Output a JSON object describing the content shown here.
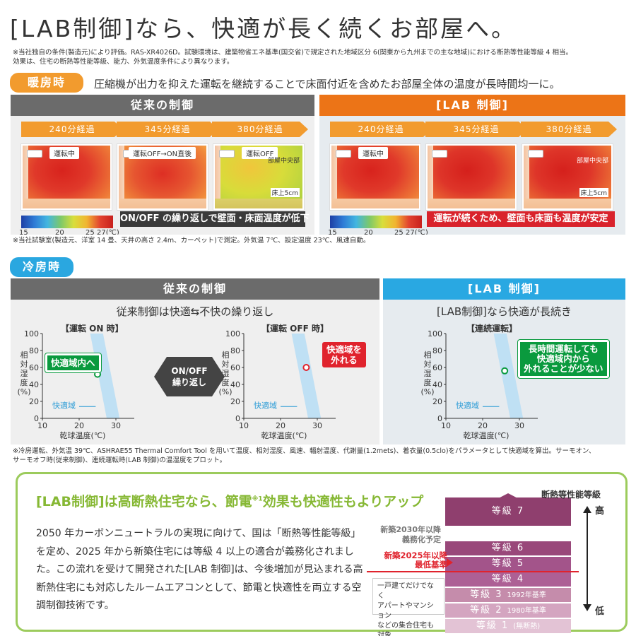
{
  "heading": "[LAB制御]なら、快適が長く続くお部屋へ。",
  "top_note_line1": "※当社独自の条件(製造元)により評価。RAS-XR4026D。試験環境は、建築物省エネ基準(国交省)で規定された地域区分 6(関東から九州までの主な地域)における断熱等性能等級 4 相当。",
  "top_note_line2": "効果は、住宅の断熱等性能等級、能力、外気温度条件により異なります。",
  "heating": {
    "badge": "暖房時",
    "lead": "圧縮機が出力を抑えた運転を継続することで床面付近を含めたお部屋全体の温度が長時間均一に。",
    "conventional": {
      "header": "従来の制御",
      "times": [
        "240分経過",
        "345分経過",
        "380分経過"
      ],
      "states": [
        "運転中",
        "運転OFF→ON直後",
        "運転OFF"
      ],
      "label_center": "部屋中央部",
      "label_floor": "床上5cm",
      "banner": "ON/OFF の繰り返しで壁面・床面温度が低下"
    },
    "lab": {
      "header": "[LAB 制御]",
      "times": [
        "240分経過",
        "345分経過",
        "380分経過"
      ],
      "states": [
        "運転中"
      ],
      "label_center": "部屋中央部",
      "label_floor": "床上5cm",
      "banner": "運転が続くため、壁面も床面も温度が安定"
    },
    "scale_ticks": [
      "15",
      "20",
      "25",
      "27(℃)"
    ],
    "note": "※当社試験室(製造元、洋室 14 畳、天井の高さ 2.4m、カーペット)で測定。外気温 7℃、設定温度 23℃、風速自動。"
  },
  "cooling": {
    "badge": "冷房時",
    "conventional": {
      "header": "従来の制御",
      "subtitle": "従来制御は快適⇆不快の繰り返し",
      "chart_on_title": "【運転 ON 時】",
      "chart_off_title": "【運転 OFF 時】",
      "label_in": "快適域内へ",
      "label_out": "快適域を\n外れる",
      "cycle": "ON/OFF\n繰り返し"
    },
    "lab": {
      "header": "[LAB 制御]",
      "subtitle": "[LAB制御]なら快適が長続き",
      "chart_title": "【連続運転】",
      "label": "長時間運転しても\n快適域内から\n外れることが少ない"
    },
    "zone_label": "快適域",
    "y_axis_label": "相対湿度(%)",
    "x_axis_label": "乾球温度(℃)",
    "note_line1": "※冷房運転、外気温 39℃、ASHRAE55 Thermal Comfort Tool を用いて温度、相対湿度、風速、輻射温度、代謝量(1.2mets)、着衣量(0.5clo)をパラメータとして快適域を算出。サーモオン、",
    "note_line2": "サーモオフ時(従来制御)、連続運転時(LAB 制御)の温湿度をプロット。"
  },
  "chart_data": [
    {
      "type": "scatter",
      "title": "【運転 ON 時】",
      "xlabel": "乾球温度(℃)",
      "ylabel": "相対湿度(%)",
      "xlim": [
        10,
        35
      ],
      "ylim": [
        0,
        100
      ],
      "xticks": [
        10,
        20,
        30
      ],
      "yticks": [
        0,
        20,
        40,
        60,
        80,
        100
      ],
      "points": [
        {
          "x": 25,
          "y": 52,
          "label": "快適域内へ"
        }
      ]
    },
    {
      "type": "scatter",
      "title": "【運転 OFF 時】",
      "xlabel": "乾球温度(℃)",
      "ylabel": "相対湿度(%)",
      "xlim": [
        10,
        35
      ],
      "ylim": [
        0,
        100
      ],
      "xticks": [
        10,
        20,
        30
      ],
      "yticks": [
        0,
        20,
        40,
        60,
        80,
        100
      ],
      "points": [
        {
          "x": 27,
          "y": 60,
          "label": "快適域を外れる"
        }
      ]
    },
    {
      "type": "scatter",
      "title": "【連続運転】",
      "xlabel": "乾球温度(℃)",
      "ylabel": "相対湿度(%)",
      "xlim": [
        10,
        35
      ],
      "ylim": [
        0,
        100
      ],
      "xticks": [
        10,
        20,
        30
      ],
      "yticks": [
        0,
        20,
        40,
        60,
        80,
        100
      ],
      "points": [
        {
          "x": 26,
          "y": 56,
          "label": "長時間運転しても快適域内から外れることが少ない"
        }
      ]
    }
  ],
  "insulation": {
    "title_a": "[LAB制御]は高断熱住宅なら、節電",
    "title_sup": "※1",
    "title_b": "効果も快適性もよりアップ",
    "body": "2050 年カーボンニュートラルの実現に向けて、国は「断熱等性能等級」を定め、2025 年から新築住宅には等級 4 以上の適合が義務化されました。この流れを受けて開発された[LAB 制御]は、今後増加が見込まれる高断熱住宅にも対応したルームエアコンとして、節電と快適性を両立する空調制御技術です。",
    "axis_title": "断熱等性能等級",
    "high": "高",
    "low": "低",
    "levels": [
      {
        "name": "等級 7",
        "sub": ""
      },
      {
        "name": "等級 6",
        "sub": ""
      },
      {
        "name": "等級 5",
        "sub": ""
      },
      {
        "name": "等級 4",
        "sub": ""
      },
      {
        "name": "等級 3",
        "sub": "1992年基準"
      },
      {
        "name": "等級 2",
        "sub": "1980年基準"
      },
      {
        "name": "等級 1",
        "sub": "(無断熱)"
      }
    ],
    "note_2030": "新築2030年以降\n義務化予定",
    "note_2025": "新築2025年以降\n最低基準",
    "note_house": "一戸建てだけでなく\nアパートやマンション\nなどの集合住宅も対象",
    "colors": {
      "top": "#8f3f6e",
      "mid": "#a14f7f",
      "low": "#cf9bb8",
      "accent": "#e0232d"
    }
  }
}
